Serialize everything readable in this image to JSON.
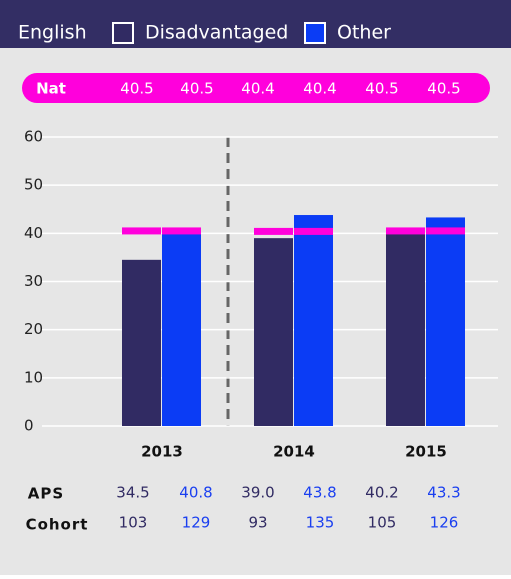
{
  "chart_data": {
    "type": "bar",
    "title": "English",
    "categories": [
      "2013",
      "2014",
      "2015"
    ],
    "series": [
      {
        "name": "Disadvantaged",
        "color": "#312b63",
        "text_color": "#312b63",
        "values": [
          34.5,
          39.0,
          40.2
        ],
        "value_labels": [
          "34.5",
          "39.0",
          "40.2"
        ],
        "cohort": [
          103,
          93,
          105
        ]
      },
      {
        "name": "Other",
        "color": "#0b3cf5",
        "text_color": "#1a3ff0",
        "values": [
          40.8,
          43.8,
          43.3
        ],
        "value_labels": [
          "40.8",
          "43.8",
          "43.3"
        ],
        "cohort": [
          129,
          135,
          126
        ]
      }
    ],
    "national": {
      "label": "Nat",
      "color": "#ff00dc",
      "values": [
        40.5,
        40.5,
        40.4,
        40.4,
        40.5,
        40.5
      ]
    },
    "aps_label": "APS",
    "cohort_label": "Cohort",
    "ylim": [
      0,
      60
    ],
    "yticks": [
      0,
      10,
      20,
      30,
      40,
      50,
      60
    ],
    "grid": true
  }
}
